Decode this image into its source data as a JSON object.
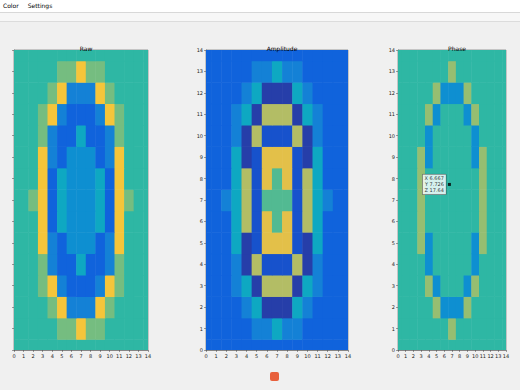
{
  "window": {
    "menu": [
      "Color",
      "Settings"
    ]
  },
  "chart_data": [
    {
      "type": "heatmap",
      "title": "Raw",
      "x": [
        0,
        1,
        2,
        3,
        4,
        5,
        6,
        7,
        8,
        9,
        10,
        11,
        12,
        13,
        14
      ],
      "y": [
        0,
        1,
        2,
        3,
        4,
        5,
        6,
        7,
        8,
        9,
        10,
        11,
        12,
        13,
        14
      ],
      "xlim": [
        0,
        14
      ],
      "ylim": [
        0,
        14
      ],
      "xticks": [
        0,
        1,
        2,
        3,
        4,
        5,
        6,
        7,
        8,
        9,
        10,
        11,
        12,
        13,
        14
      ],
      "yticks": [
        0,
        1,
        2,
        3,
        4,
        5,
        6,
        7,
        8,
        9,
        10,
        11,
        12,
        13,
        14
      ],
      "tick_labels": "x",
      "zlim": [
        0,
        1
      ],
      "z": [
        [
          0.5,
          0.5,
          0.5,
          0.5,
          0.5,
          0.5,
          0.5,
          0.5,
          0.5,
          0.5,
          0.5,
          0.5,
          0.5,
          0.5,
          0.5
        ],
        [
          0.5,
          0.5,
          0.5,
          0.5,
          0.5,
          0.6,
          0.6,
          0.85,
          0.6,
          0.6,
          0.5,
          0.5,
          0.5,
          0.5,
          0.5
        ],
        [
          0.5,
          0.5,
          0.5,
          0.5,
          0.6,
          0.85,
          0.25,
          0.25,
          0.25,
          0.85,
          0.6,
          0.5,
          0.5,
          0.5,
          0.5
        ],
        [
          0.5,
          0.5,
          0.5,
          0.6,
          0.85,
          0.25,
          0.15,
          0.15,
          0.15,
          0.25,
          0.85,
          0.6,
          0.5,
          0.5,
          0.5
        ],
        [
          0.5,
          0.5,
          0.5,
          0.6,
          0.25,
          0.15,
          0.15,
          0.4,
          0.15,
          0.15,
          0.25,
          0.6,
          0.5,
          0.5,
          0.5
        ],
        [
          0.5,
          0.5,
          0.5,
          0.85,
          0.25,
          0.15,
          0.3,
          0.3,
          0.3,
          0.15,
          0.25,
          0.85,
          0.5,
          0.5,
          0.5
        ],
        [
          0.5,
          0.5,
          0.5,
          0.85,
          0.15,
          0.4,
          0.3,
          0.3,
          0.3,
          0.4,
          0.15,
          0.85,
          0.5,
          0.5,
          0.5
        ],
        [
          0.5,
          0.5,
          0.6,
          0.85,
          0.15,
          0.4,
          0.3,
          0.3,
          0.3,
          0.4,
          0.15,
          0.85,
          0.6,
          0.5,
          0.5
        ],
        [
          0.5,
          0.5,
          0.5,
          0.85,
          0.15,
          0.4,
          0.3,
          0.3,
          0.3,
          0.4,
          0.15,
          0.85,
          0.5,
          0.5,
          0.5
        ],
        [
          0.5,
          0.5,
          0.5,
          0.85,
          0.25,
          0.15,
          0.3,
          0.3,
          0.3,
          0.15,
          0.25,
          0.85,
          0.5,
          0.5,
          0.5
        ],
        [
          0.5,
          0.5,
          0.5,
          0.6,
          0.25,
          0.15,
          0.15,
          0.4,
          0.15,
          0.15,
          0.25,
          0.6,
          0.5,
          0.5,
          0.5
        ],
        [
          0.5,
          0.5,
          0.5,
          0.6,
          0.85,
          0.25,
          0.15,
          0.15,
          0.15,
          0.25,
          0.85,
          0.6,
          0.5,
          0.5,
          0.5
        ],
        [
          0.5,
          0.5,
          0.5,
          0.5,
          0.6,
          0.85,
          0.25,
          0.25,
          0.25,
          0.85,
          0.6,
          0.5,
          0.5,
          0.5,
          0.5
        ],
        [
          0.5,
          0.5,
          0.5,
          0.5,
          0.5,
          0.6,
          0.6,
          0.85,
          0.6,
          0.6,
          0.5,
          0.5,
          0.5,
          0.5,
          0.5
        ],
        [
          0.5,
          0.5,
          0.5,
          0.5,
          0.5,
          0.5,
          0.5,
          0.5,
          0.5,
          0.5,
          0.5,
          0.5,
          0.5,
          0.5,
          0.5
        ]
      ]
    },
    {
      "type": "heatmap",
      "title": "Amplitude",
      "x": [
        0,
        1,
        2,
        3,
        4,
        5,
        6,
        7,
        8,
        9,
        10,
        11,
        12,
        13,
        14
      ],
      "y": [
        0,
        1,
        2,
        3,
        4,
        5,
        6,
        7,
        8,
        9,
        10,
        11,
        12,
        13,
        14
      ],
      "xlim": [
        0,
        14
      ],
      "ylim": [
        0,
        14
      ],
      "xticks": [
        0,
        1,
        2,
        3,
        4,
        5,
        6,
        7,
        8,
        9,
        10,
        11,
        12,
        13,
        14
      ],
      "yticks": [
        0,
        1,
        2,
        3,
        4,
        5,
        6,
        7,
        8,
        9,
        10,
        11,
        12,
        13,
        14
      ],
      "zlim": [
        0,
        1
      ],
      "z": [
        [
          0.15,
          0.15,
          0.15,
          0.15,
          0.15,
          0.15,
          0.15,
          0.15,
          0.15,
          0.15,
          0.15,
          0.15,
          0.15,
          0.15,
          0.15
        ],
        [
          0.15,
          0.15,
          0.15,
          0.15,
          0.15,
          0.25,
          0.25,
          0.4,
          0.25,
          0.25,
          0.15,
          0.15,
          0.15,
          0.15,
          0.15
        ],
        [
          0.15,
          0.15,
          0.15,
          0.15,
          0.25,
          0.4,
          0.05,
          0.05,
          0.05,
          0.4,
          0.25,
          0.15,
          0.15,
          0.15,
          0.15
        ],
        [
          0.15,
          0.15,
          0.15,
          0.25,
          0.4,
          0.05,
          0.7,
          0.7,
          0.7,
          0.05,
          0.4,
          0.25,
          0.15,
          0.15,
          0.15
        ],
        [
          0.15,
          0.15,
          0.15,
          0.25,
          0.05,
          0.7,
          0.1,
          0.1,
          0.1,
          0.7,
          0.05,
          0.25,
          0.15,
          0.15,
          0.15
        ],
        [
          0.15,
          0.15,
          0.15,
          0.4,
          0.05,
          0.1,
          0.8,
          0.8,
          0.8,
          0.1,
          0.05,
          0.4,
          0.15,
          0.15,
          0.15
        ],
        [
          0.15,
          0.15,
          0.15,
          0.4,
          0.7,
          0.1,
          0.8,
          0.55,
          0.8,
          0.1,
          0.7,
          0.4,
          0.15,
          0.15,
          0.15
        ],
        [
          0.15,
          0.15,
          0.25,
          0.4,
          0.7,
          0.1,
          0.55,
          0.55,
          0.55,
          0.1,
          0.7,
          0.4,
          0.25,
          0.15,
          0.15
        ],
        [
          0.15,
          0.15,
          0.15,
          0.4,
          0.7,
          0.1,
          0.8,
          0.55,
          0.8,
          0.1,
          0.7,
          0.4,
          0.15,
          0.15,
          0.15
        ],
        [
          0.15,
          0.15,
          0.15,
          0.4,
          0.05,
          0.1,
          0.8,
          0.8,
          0.8,
          0.1,
          0.05,
          0.4,
          0.15,
          0.15,
          0.15
        ],
        [
          0.15,
          0.15,
          0.15,
          0.25,
          0.05,
          0.7,
          0.1,
          0.1,
          0.1,
          0.7,
          0.05,
          0.25,
          0.15,
          0.15,
          0.15
        ],
        [
          0.15,
          0.15,
          0.15,
          0.25,
          0.4,
          0.05,
          0.7,
          0.7,
          0.7,
          0.05,
          0.4,
          0.25,
          0.15,
          0.15,
          0.15
        ],
        [
          0.15,
          0.15,
          0.15,
          0.15,
          0.25,
          0.4,
          0.05,
          0.05,
          0.05,
          0.4,
          0.25,
          0.15,
          0.15,
          0.15,
          0.15
        ],
        [
          0.15,
          0.15,
          0.15,
          0.15,
          0.15,
          0.25,
          0.25,
          0.4,
          0.25,
          0.25,
          0.15,
          0.15,
          0.15,
          0.15,
          0.15
        ],
        [
          0.15,
          0.15,
          0.15,
          0.15,
          0.15,
          0.15,
          0.15,
          0.15,
          0.15,
          0.15,
          0.15,
          0.15,
          0.15,
          0.15,
          0.15
        ]
      ]
    },
    {
      "type": "heatmap",
      "title": "Phase",
      "x": [
        0,
        1,
        2,
        3,
        4,
        5,
        6,
        7,
        8,
        9,
        10,
        11,
        12,
        13,
        14
      ],
      "y": [
        0,
        1,
        2,
        3,
        4,
        5,
        6,
        7,
        8,
        9,
        10,
        11,
        12,
        13,
        14
      ],
      "xlim": [
        0,
        14
      ],
      "ylim": [
        0,
        14
      ],
      "xticks": [
        0,
        1,
        2,
        3,
        4,
        5,
        6,
        7,
        8,
        9,
        10,
        11,
        12,
        13,
        14
      ],
      "yticks": [
        0,
        1,
        2,
        3,
        4,
        5,
        6,
        7,
        8,
        9,
        10,
        11,
        12,
        13,
        14
      ],
      "zlim": [
        0,
        1
      ],
      "annotations": [
        {
          "x": 6.667,
          "y": 7.726,
          "text": [
            "X 6.667",
            "Y 7.726",
            "Z 17.64"
          ]
        }
      ],
      "z": [
        [
          0.5,
          0.5,
          0.5,
          0.5,
          0.5,
          0.5,
          0.5,
          0.5,
          0.5,
          0.5,
          0.5,
          0.5,
          0.5,
          0.5,
          0.5
        ],
        [
          0.5,
          0.5,
          0.5,
          0.5,
          0.5,
          0.5,
          0.5,
          0.65,
          0.5,
          0.5,
          0.5,
          0.5,
          0.5,
          0.5,
          0.5
        ],
        [
          0.5,
          0.5,
          0.5,
          0.5,
          0.5,
          0.65,
          0.3,
          0.3,
          0.3,
          0.65,
          0.5,
          0.5,
          0.5,
          0.5,
          0.5
        ],
        [
          0.5,
          0.5,
          0.5,
          0.5,
          0.65,
          0.3,
          0.5,
          0.5,
          0.5,
          0.3,
          0.65,
          0.5,
          0.5,
          0.5,
          0.5
        ],
        [
          0.5,
          0.5,
          0.5,
          0.5,
          0.3,
          0.5,
          0.5,
          0.5,
          0.5,
          0.5,
          0.3,
          0.5,
          0.5,
          0.5,
          0.5
        ],
        [
          0.5,
          0.5,
          0.5,
          0.65,
          0.3,
          0.5,
          0.5,
          0.5,
          0.5,
          0.5,
          0.3,
          0.65,
          0.5,
          0.5,
          0.5
        ],
        [
          0.5,
          0.5,
          0.5,
          0.65,
          0.5,
          0.5,
          0.5,
          0.5,
          0.5,
          0.5,
          0.5,
          0.65,
          0.5,
          0.5,
          0.5
        ],
        [
          0.5,
          0.5,
          0.5,
          0.65,
          0.5,
          0.5,
          0.5,
          0.5,
          0.5,
          0.5,
          0.5,
          0.65,
          0.5,
          0.5,
          0.5
        ],
        [
          0.5,
          0.5,
          0.5,
          0.65,
          0.5,
          0.5,
          0.5,
          0.5,
          0.5,
          0.5,
          0.5,
          0.65,
          0.5,
          0.5,
          0.5
        ],
        [
          0.5,
          0.5,
          0.5,
          0.65,
          0.3,
          0.5,
          0.5,
          0.5,
          0.5,
          0.5,
          0.3,
          0.65,
          0.5,
          0.5,
          0.5
        ],
        [
          0.5,
          0.5,
          0.5,
          0.5,
          0.3,
          0.5,
          0.5,
          0.5,
          0.5,
          0.5,
          0.3,
          0.5,
          0.5,
          0.5,
          0.5
        ],
        [
          0.5,
          0.5,
          0.5,
          0.5,
          0.65,
          0.3,
          0.5,
          0.5,
          0.5,
          0.3,
          0.65,
          0.5,
          0.5,
          0.5,
          0.5
        ],
        [
          0.5,
          0.5,
          0.5,
          0.5,
          0.5,
          0.65,
          0.3,
          0.3,
          0.3,
          0.65,
          0.5,
          0.5,
          0.5,
          0.5,
          0.5
        ],
        [
          0.5,
          0.5,
          0.5,
          0.5,
          0.5,
          0.5,
          0.5,
          0.65,
          0.5,
          0.5,
          0.5,
          0.5,
          0.5,
          0.5,
          0.5
        ],
        [
          0.5,
          0.5,
          0.5,
          0.5,
          0.5,
          0.5,
          0.5,
          0.5,
          0.5,
          0.5,
          0.5,
          0.5,
          0.5,
          0.5,
          0.5
        ]
      ]
    }
  ]
}
